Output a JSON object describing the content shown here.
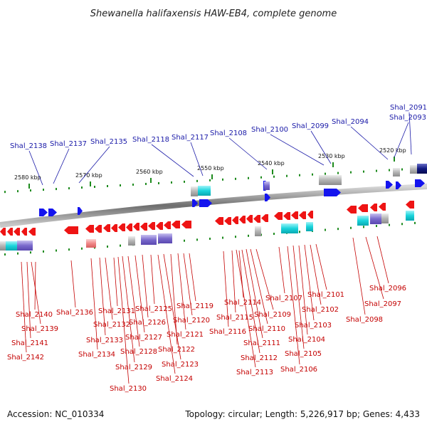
{
  "title": "Shewanella halifaxensis HAW-EB4, complete genome",
  "footer": {
    "accession": "Accession: NC_010334",
    "summary": "Topology: circular; Length: 5,226,917 bp; Genes: 4,433"
  },
  "scale_labels": [
    "2580 kbp",
    "2570 kbp",
    "2560 kbp",
    "2550 kbp",
    "2540 kbp",
    "2530 kbp",
    "2520 kbp"
  ],
  "top_labels": [
    "Shal_2138",
    "Shal_2137",
    "Shal_2135",
    "Shal_2118",
    "Shal_2117",
    "Shal_2108",
    "Shal_2100",
    "Shal_2099",
    "Shal_2094",
    "Shal_2093",
    "Shal_2091"
  ],
  "bottom_labels": [
    "Shal_2140",
    "Shal_2139",
    "Shal_2141",
    "Shal_2142",
    "Shal_2136",
    "Shal_2131",
    "Shal_2132",
    "Shal_2133",
    "Shal_2134",
    "Shal_2125",
    "Shal_2126",
    "Shal_2127",
    "Shal_2128",
    "Shal_2129",
    "Shal_2130",
    "Shal_2119",
    "Shal_2120",
    "Shal_2121",
    "Shal_2122",
    "Shal_2123",
    "Shal_2124",
    "Shal_2114",
    "Shal_2115",
    "Shal_2116",
    "Shal_2109",
    "Shal_2110",
    "Shal_2111",
    "Shal_2112",
    "Shal_2113",
    "Shal_2107",
    "Shal_2101",
    "Shal_2102",
    "Shal_2103",
    "Shal_2104",
    "Shal_2105",
    "Shal_2106",
    "Shal_2096",
    "Shal_2097",
    "Shal_2098"
  ],
  "colors": {
    "plus_strand": "#1414ee",
    "minus_strand": "#ee1414",
    "top_label": "#1a1aa8",
    "bottom_label": "#c40000",
    "backbone": "#8a8a8a",
    "tick": "#1d8a1d",
    "cog_cyan": "#22d8e0",
    "cog_purple": "#7a6acc",
    "cog_grey": "#b4b4b4",
    "cog_navy": "#101880",
    "cog_pink": "#f08888"
  }
}
